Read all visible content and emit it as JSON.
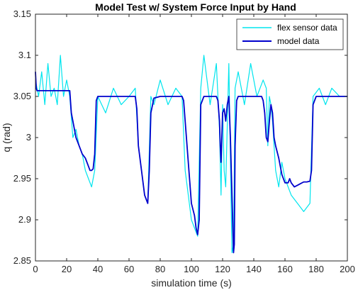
{
  "chart_data": {
    "type": "line",
    "title": "Model Test w/ System Force Input by Hand",
    "xlabel": "simulation time (s)",
    "ylabel": "q (rad)",
    "xlim": [
      0,
      200
    ],
    "ylim": [
      2.85,
      3.15
    ],
    "x_ticks": [
      0,
      20,
      40,
      60,
      80,
      100,
      120,
      140,
      160,
      180,
      200
    ],
    "y_ticks": [
      2.85,
      2.9,
      2.95,
      3,
      3.05,
      3.1,
      3.15
    ],
    "x_tick_labels": [
      "0",
      "20",
      "40",
      "60",
      "80",
      "100",
      "120",
      "140",
      "160",
      "180",
      "200"
    ],
    "y_tick_labels": [
      "2.85",
      "2.9",
      "2.95",
      "3",
      "3.05",
      "3.1",
      "3.15"
    ],
    "grid": false,
    "legend_position": "top-right",
    "series": [
      {
        "name": "flex sensor data",
        "color": "#00e5ee",
        "x": [
          0,
          2,
          4,
          6,
          8,
          10,
          12,
          14,
          16,
          18,
          20,
          22,
          24,
          26,
          28,
          30,
          32,
          34,
          36,
          38,
          40,
          45,
          50,
          55,
          60,
          64,
          66,
          68,
          70,
          72,
          74,
          76,
          80,
          85,
          90,
          94,
          96,
          98,
          100,
          102,
          104,
          106,
          108,
          112,
          116,
          118,
          119,
          120,
          121,
          122,
          124,
          126,
          127,
          128,
          130,
          134,
          138,
          142,
          146,
          148,
          149,
          150,
          151,
          152,
          154,
          156,
          158,
          160,
          164,
          168,
          172,
          176,
          178,
          182,
          186,
          190,
          195,
          200
        ],
        "y": [
          3.07,
          3.05,
          3.08,
          3.04,
          3.09,
          3.05,
          3.06,
          3.04,
          3.1,
          3.05,
          3.07,
          3.05,
          3.0,
          3.01,
          2.99,
          2.98,
          2.96,
          2.95,
          2.94,
          2.96,
          3.05,
          3.03,
          3.06,
          3.04,
          3.05,
          3.06,
          2.99,
          2.96,
          2.93,
          2.92,
          3.05,
          3.04,
          3.07,
          3.04,
          3.06,
          3.05,
          2.96,
          2.93,
          2.9,
          2.89,
          2.88,
          3.06,
          3.1,
          3.04,
          3.09,
          3.01,
          2.93,
          3.04,
          2.96,
          2.94,
          3.09,
          2.86,
          2.87,
          3.06,
          3.08,
          3.04,
          3.09,
          3.05,
          3.07,
          3.06,
          2.99,
          3.05,
          3.04,
          3.02,
          2.96,
          2.94,
          2.97,
          2.95,
          2.93,
          2.92,
          2.91,
          2.92,
          3.05,
          3.06,
          3.04,
          3.06,
          3.05,
          3.05
        ]
      },
      {
        "name": "model data",
        "color": "#0000cc",
        "x": [
          0,
          0.5,
          1,
          2,
          5,
          10,
          15,
          20,
          22,
          23,
          24,
          26,
          28,
          30,
          32,
          34,
          35,
          36,
          37,
          38,
          39,
          40,
          45,
          50,
          55,
          60,
          64,
          65,
          66,
          68,
          70,
          71,
          72,
          73,
          74,
          76,
          80,
          85,
          90,
          94,
          95,
          96,
          98,
          100,
          102,
          103,
          104,
          105,
          106,
          108,
          112,
          116,
          117,
          118,
          118.5,
          119,
          120,
          121,
          122,
          123,
          124,
          125,
          126,
          127,
          127.5,
          128,
          129,
          130,
          134,
          138,
          142,
          145,
          146,
          147,
          148,
          149,
          150,
          151,
          152,
          153,
          154,
          156,
          158,
          160,
          162,
          163,
          164,
          166,
          168,
          170,
          172,
          174,
          176,
          177,
          178,
          180,
          185,
          190,
          195,
          200
        ],
        "y": [
          3.08,
          3.06,
          3.057,
          3.057,
          3.057,
          3.057,
          3.057,
          3.057,
          3.057,
          3.03,
          3.02,
          3.0,
          2.99,
          2.98,
          2.975,
          2.965,
          2.96,
          2.96,
          2.962,
          2.98,
          3.045,
          3.05,
          3.05,
          3.05,
          3.05,
          3.05,
          3.05,
          3.035,
          2.99,
          2.96,
          2.93,
          2.925,
          2.92,
          2.96,
          3.03,
          3.048,
          3.05,
          3.05,
          3.05,
          3.05,
          3.045,
          3.02,
          2.97,
          2.92,
          2.905,
          2.89,
          2.882,
          2.9,
          3.04,
          3.05,
          3.05,
          3.05,
          3.045,
          3.02,
          2.99,
          2.97,
          3.03,
          3.035,
          3.02,
          3.04,
          3.05,
          3.0,
          2.93,
          2.86,
          2.87,
          2.99,
          3.045,
          3.05,
          3.05,
          3.05,
          3.05,
          3.05,
          3.045,
          3.03,
          3.0,
          2.995,
          3.02,
          3.04,
          3.03,
          3.0,
          2.99,
          2.975,
          2.955,
          2.945,
          2.945,
          2.95,
          2.945,
          2.94,
          2.942,
          2.944,
          2.946,
          2.946,
          2.947,
          2.96,
          3.04,
          3.05,
          3.05,
          3.05,
          3.05,
          3.05
        ]
      }
    ]
  }
}
